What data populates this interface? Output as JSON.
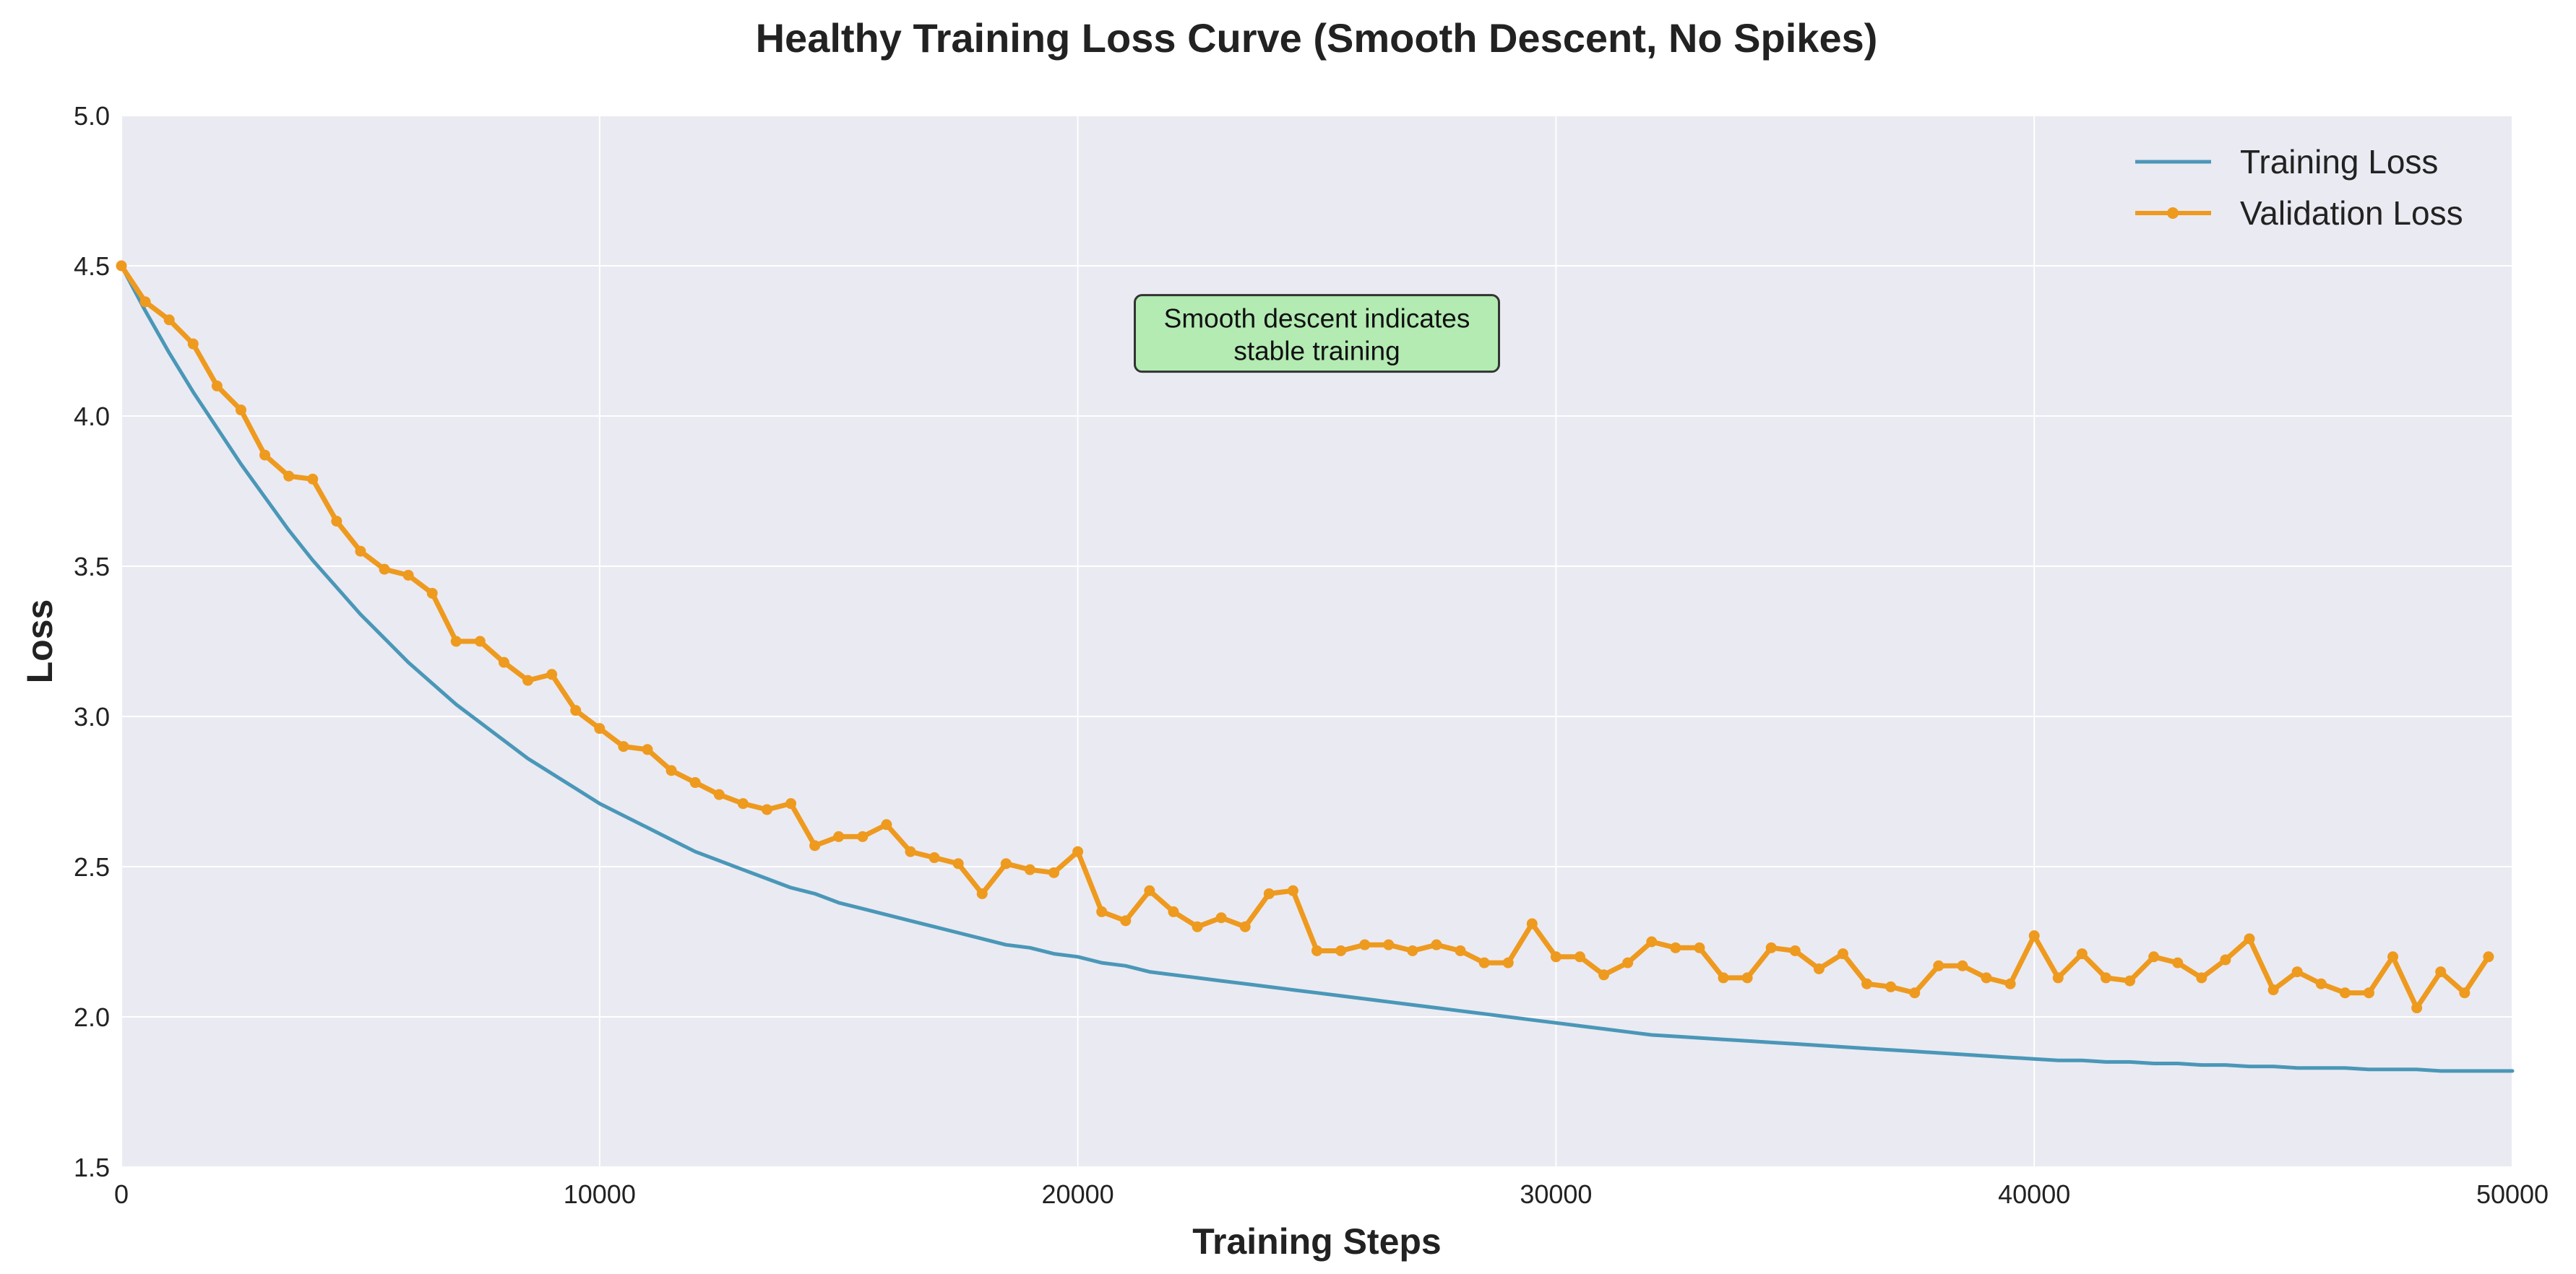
{
  "chart_data": {
    "type": "line",
    "title": "Healthy Training Loss Curve (Smooth Descent, No Spikes)",
    "xlabel": "Training Steps",
    "ylabel": "Loss",
    "xlim": [
      0,
      50000
    ],
    "ylim": [
      1.5,
      5.0
    ],
    "xticks": [
      0,
      10000,
      20000,
      30000,
      40000,
      50000
    ],
    "xtick_labels": [
      "0",
      "10000",
      "20000",
      "30000",
      "40000",
      "50000"
    ],
    "yticks": [
      1.5,
      2.0,
      2.5,
      3.0,
      3.5,
      4.0,
      4.5,
      5.0
    ],
    "ytick_labels": [
      "1.5",
      "2.0",
      "2.5",
      "3.0",
      "3.5",
      "4.0",
      "4.5",
      "5.0"
    ],
    "grid": true,
    "legend_position": "top-right",
    "annotation": {
      "lines": [
        "Smooth descent indicates",
        "stable training"
      ],
      "x": 25000,
      "y": 4.27,
      "color": "#b3ebb3"
    },
    "series": [
      {
        "name": "Training Loss",
        "color": "#4a97b8",
        "markers": false,
        "x": [
          0,
          500,
          1000,
          1500,
          2000,
          2500,
          3000,
          3500,
          4000,
          4500,
          5000,
          5500,
          6000,
          6500,
          7000,
          7500,
          8000,
          8500,
          9000,
          9500,
          10000,
          10500,
          11000,
          11500,
          12000,
          12500,
          13000,
          13500,
          14000,
          14500,
          15000,
          15500,
          16000,
          16500,
          17000,
          17500,
          18000,
          18500,
          19000,
          19500,
          20000,
          20500,
          21000,
          21500,
          22000,
          22500,
          23000,
          23500,
          24000,
          24500,
          25000,
          25500,
          26000,
          26500,
          27000,
          27500,
          28000,
          28500,
          29000,
          29500,
          30000,
          30500,
          31000,
          31500,
          32000,
          32500,
          33000,
          33500,
          34000,
          34500,
          35000,
          35500,
          36000,
          36500,
          37000,
          37500,
          38000,
          38500,
          39000,
          39500,
          40000,
          40500,
          41000,
          41500,
          42000,
          42500,
          43000,
          43500,
          44000,
          44500,
          45000,
          45500,
          46000,
          46500,
          47000,
          47500,
          48000,
          48500,
          49000,
          49500,
          50000
        ],
        "y": [
          4.5,
          4.35,
          4.21,
          4.08,
          3.96,
          3.84,
          3.73,
          3.62,
          3.52,
          3.43,
          3.34,
          3.26,
          3.18,
          3.11,
          3.04,
          2.98,
          2.92,
          2.86,
          2.81,
          2.76,
          2.71,
          2.67,
          2.63,
          2.59,
          2.55,
          2.52,
          2.49,
          2.46,
          2.43,
          2.41,
          2.38,
          2.36,
          2.34,
          2.32,
          2.3,
          2.28,
          2.26,
          2.24,
          2.23,
          2.21,
          2.2,
          2.18,
          2.17,
          2.15,
          2.14,
          2.13,
          2.12,
          2.11,
          2.1,
          2.09,
          2.08,
          2.07,
          2.06,
          2.05,
          2.04,
          2.03,
          2.02,
          2.01,
          2.0,
          1.99,
          1.98,
          1.97,
          1.96,
          1.95,
          1.94,
          1.935,
          1.93,
          1.925,
          1.92,
          1.915,
          1.91,
          1.905,
          1.9,
          1.895,
          1.89,
          1.885,
          1.88,
          1.875,
          1.87,
          1.865,
          1.86,
          1.855,
          1.855,
          1.85,
          1.85,
          1.845,
          1.845,
          1.84,
          1.84,
          1.835,
          1.835,
          1.83,
          1.83,
          1.83,
          1.825,
          1.825,
          1.825,
          1.82,
          1.82,
          1.82,
          1.82
        ]
      },
      {
        "name": "Validation Loss",
        "color": "#ee9a1f",
        "markers": true,
        "x": [
          0,
          500,
          1000,
          1500,
          2000,
          2500,
          3000,
          3500,
          4000,
          4500,
          5000,
          5500,
          6000,
          6500,
          7000,
          7500,
          8000,
          8500,
          9000,
          9500,
          10000,
          10500,
          11000,
          11500,
          12000,
          12500,
          13000,
          13500,
          14000,
          14500,
          15000,
          15500,
          16000,
          16500,
          17000,
          17500,
          18000,
          18500,
          19000,
          19500,
          20000,
          20500,
          21000,
          21500,
          22000,
          22500,
          23000,
          23500,
          24000,
          24500,
          25000,
          25500,
          26000,
          26500,
          27000,
          27500,
          28000,
          28500,
          29000,
          29500,
          30000,
          30500,
          31000,
          31500,
          32000,
          32500,
          33000,
          33500,
          34000,
          34500,
          35000,
          35500,
          36000,
          36500,
          37000,
          37500,
          38000,
          38500,
          39000,
          39500,
          40000,
          40500,
          41000,
          41500,
          42000,
          42500,
          43000,
          43500,
          44000,
          44500,
          45000,
          45500,
          46000,
          46500,
          47000,
          47500,
          48000,
          48500,
          49000,
          49500
        ],
        "y": [
          4.5,
          4.38,
          4.32,
          4.24,
          4.1,
          4.02,
          3.87,
          3.8,
          3.79,
          3.65,
          3.55,
          3.49,
          3.47,
          3.41,
          3.25,
          3.25,
          3.18,
          3.12,
          3.14,
          3.02,
          2.96,
          2.9,
          2.89,
          2.82,
          2.78,
          2.74,
          2.71,
          2.69,
          2.71,
          2.57,
          2.6,
          2.6,
          2.64,
          2.55,
          2.53,
          2.51,
          2.41,
          2.51,
          2.49,
          2.48,
          2.55,
          2.35,
          2.32,
          2.42,
          2.35,
          2.3,
          2.33,
          2.3,
          2.41,
          2.42,
          2.22,
          2.22,
          2.24,
          2.24,
          2.22,
          2.24,
          2.22,
          2.18,
          2.18,
          2.31,
          2.2,
          2.2,
          2.14,
          2.18,
          2.25,
          2.23,
          2.23,
          2.13,
          2.13,
          2.23,
          2.22,
          2.16,
          2.21,
          2.11,
          2.1,
          2.08,
          2.17,
          2.17,
          2.13,
          2.11,
          2.27,
          2.13,
          2.21,
          2.13,
          2.12,
          2.2,
          2.18,
          2.13,
          2.19,
          2.26,
          2.09,
          2.15,
          2.11,
          2.08,
          2.08,
          2.2,
          2.03,
          2.15,
          2.08,
          2.2
        ]
      }
    ]
  }
}
